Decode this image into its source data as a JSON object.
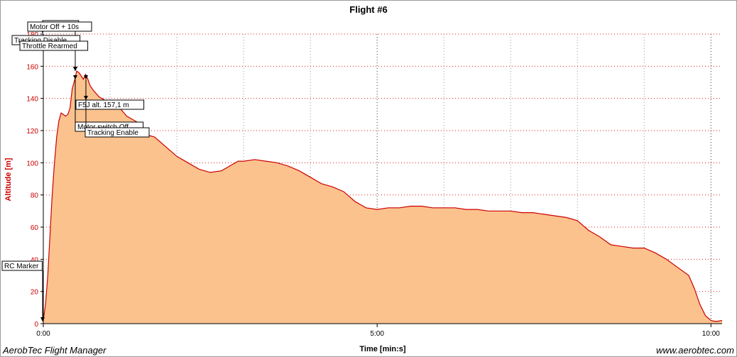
{
  "footer": {
    "left": "AerobTec Flight Manager",
    "right": "www.aerobtec.com"
  },
  "chart_data": {
    "type": "area",
    "title": "Flight #6",
    "xlabel": "Time [min:s]",
    "ylabel": "Altitude [m]",
    "x_unit": "seconds",
    "xlim": [
      0,
      610
    ],
    "ylim": [
      0,
      180
    ],
    "x_ticks": [
      {
        "value": 0,
        "label": "0:00"
      },
      {
        "value": 300,
        "label": "5:00"
      },
      {
        "value": 600,
        "label": "10:00"
      }
    ],
    "y_ticks": [
      0,
      20,
      40,
      60,
      80,
      100,
      120,
      140,
      160,
      180
    ],
    "grid": true,
    "fill_color": "#fbc28e",
    "line_color": "#cc0000",
    "x": [
      0,
      2,
      4,
      6,
      8,
      10,
      12,
      14,
      16,
      18,
      20,
      22,
      24,
      26,
      28,
      30,
      32,
      34,
      36,
      38,
      40,
      42,
      45,
      50,
      55,
      60,
      65,
      70,
      75,
      80,
      85,
      90,
      95,
      100,
      110,
      120,
      130,
      140,
      150,
      160,
      170,
      175,
      180,
      190,
      200,
      210,
      220,
      230,
      240,
      250,
      260,
      270,
      280,
      290,
      300,
      310,
      320,
      330,
      340,
      350,
      360,
      370,
      380,
      390,
      400,
      410,
      420,
      430,
      440,
      450,
      460,
      470,
      480,
      490,
      500,
      510,
      520,
      530,
      540,
      550,
      560,
      570,
      580,
      585,
      590,
      595,
      600,
      603,
      606,
      610
    ],
    "y": [
      2,
      12,
      30,
      55,
      80,
      100,
      116,
      126,
      131,
      130,
      129,
      130,
      134,
      146,
      151,
      157,
      156,
      154,
      152,
      155,
      152,
      148,
      145,
      141,
      139,
      138,
      137,
      133,
      129,
      127,
      125,
      121,
      117,
      116,
      110,
      104,
      100,
      96,
      94,
      95,
      99,
      101,
      101,
      102,
      101,
      100,
      98,
      95,
      91,
      87,
      85,
      82,
      76,
      72,
      71,
      72,
      72,
      73,
      73,
      72,
      72,
      72,
      71,
      71,
      70,
      70,
      70,
      69,
      69,
      68,
      67,
      66,
      64,
      58,
      54,
      49,
      48,
      47,
      47,
      44,
      40,
      35,
      30,
      22,
      12,
      5,
      2,
      1.5,
      1.5,
      2
    ],
    "annotations": [
      {
        "label": "RC Marker",
        "x": 0,
        "y": 3
      },
      {
        "label": "Altitude",
        "x": 0,
        "y": 180
      },
      {
        "label": "Motor Off + 10s",
        "x": 30,
        "y": 157
      },
      {
        "label": "Tracking Disable",
        "x": 30,
        "y": 157
      },
      {
        "label": "Throttle Rearmed",
        "x": 30,
        "y": 157
      },
      {
        "label": "F5J alt. 157,1 m",
        "x": 40,
        "y": 152
      },
      {
        "label": "Motor switch Off",
        "x": 30,
        "y": 157
      },
      {
        "label": "Tracking Enable",
        "x": 40,
        "y": 152
      }
    ]
  }
}
